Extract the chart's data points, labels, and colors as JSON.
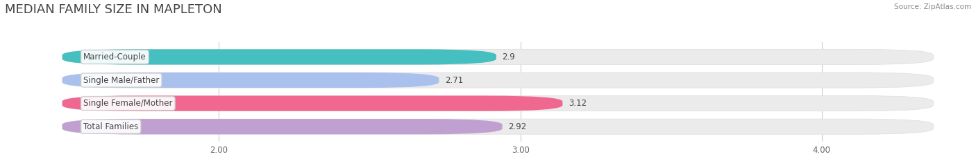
{
  "title": "MEDIAN FAMILY SIZE IN MAPLETON",
  "source": "Source: ZipAtlas.com",
  "categories": [
    "Married-Couple",
    "Single Male/Father",
    "Single Female/Mother",
    "Total Families"
  ],
  "values": [
    2.9,
    2.71,
    3.12,
    2.92
  ],
  "bar_colors": [
    "#45bfbf",
    "#aac0ed",
    "#f06890",
    "#c0a0d0"
  ],
  "xlim_left": 1.5,
  "xlim_right": 4.35,
  "xticks": [
    2.0,
    3.0,
    4.0
  ],
  "xtick_labels": [
    "2.00",
    "3.00",
    "4.00"
  ],
  "background_color": "#ffffff",
  "bar_bg_color": "#ebebeb",
  "title_fontsize": 13,
  "label_fontsize": 8.5,
  "value_fontsize": 8.5,
  "bar_height": 0.62,
  "figsize": [
    14.06,
    2.33
  ],
  "dpi": 100
}
